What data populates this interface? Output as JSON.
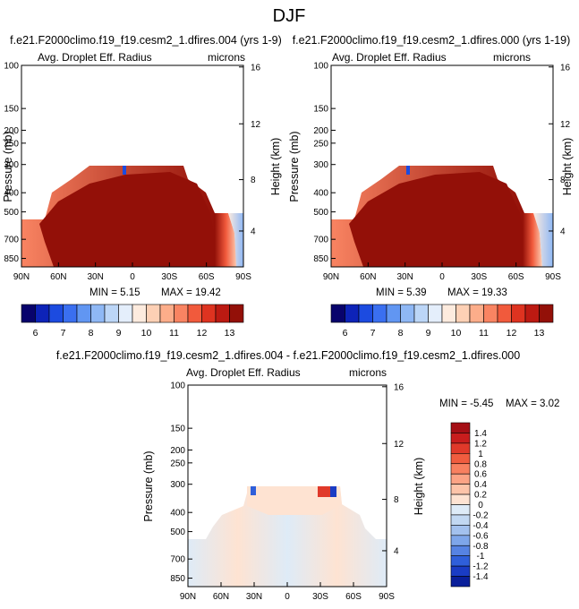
{
  "page_title": "DJF",
  "chart_data": [
    {
      "id": "p1",
      "type": "heatmap",
      "title": "f.e21.F2000climo.f19_f19.cesm2_1.dfires.004 (yrs 1-9)",
      "variable_label": "Avg. Droplet Eff. Radius",
      "units_label": "microns",
      "ylabel": "Pressure (mb)",
      "ylabel_right": "Height (km)",
      "x_ticks": [
        "90N",
        "60N",
        "30N",
        "0",
        "30S",
        "60S",
        "90S"
      ],
      "y_ticks": [
        "100",
        "150",
        "200",
        "250",
        "300",
        "400",
        "500",
        "700",
        "850"
      ],
      "y_ticks_right": [
        "16",
        "12",
        "8",
        "4"
      ],
      "xlim": [
        90,
        -90
      ],
      "ylim": [
        1000,
        100
      ],
      "min_label": "MIN =  5.15",
      "max_label": "MAX = 19.42",
      "colorbar": {
        "orientation": "horizontal",
        "tick_labels": [
          "6",
          "7",
          "8",
          "9",
          "10",
          "11",
          "12",
          "13"
        ],
        "colors": [
          "#08036c",
          "#0d23b8",
          "#1c4be0",
          "#3a6ff0",
          "#6196f2",
          "#8fb8f5",
          "#bcd6f7",
          "#e4eefb",
          "#fdebde",
          "#fdd0b5",
          "#fcad8a",
          "#f98462",
          "#f15a3c",
          "#de3320",
          "#bc1a12",
          "#931008"
        ]
      }
    },
    {
      "id": "p2",
      "type": "heatmap",
      "title": "f.e21.F2000climo.f19_f19.cesm2_1.dfires.000 (yrs 1-19)",
      "variable_label": "Avg. Droplet Eff. Radius",
      "units_label": "microns",
      "ylabel": "Pressure (mb)",
      "ylabel_right": "Height (km)",
      "x_ticks": [
        "90N",
        "60N",
        "30N",
        "0",
        "30S",
        "60S",
        "90S"
      ],
      "y_ticks": [
        "100",
        "150",
        "200",
        "250",
        "300",
        "400",
        "500",
        "700",
        "850"
      ],
      "y_ticks_right": [
        "16",
        "12",
        "8",
        "4"
      ],
      "xlim": [
        90,
        -90
      ],
      "ylim": [
        1000,
        100
      ],
      "min_label": "MIN =  5.39",
      "max_label": "MAX = 19.33",
      "colorbar": {
        "orientation": "horizontal",
        "tick_labels": [
          "6",
          "7",
          "8",
          "9",
          "10",
          "11",
          "12",
          "13"
        ],
        "colors": [
          "#08036c",
          "#0d23b8",
          "#1c4be0",
          "#3a6ff0",
          "#6196f2",
          "#8fb8f5",
          "#bcd6f7",
          "#e4eefb",
          "#fdebde",
          "#fdd0b5",
          "#fcad8a",
          "#f98462",
          "#f15a3c",
          "#de3320",
          "#bc1a12",
          "#931008"
        ]
      }
    },
    {
      "id": "p3",
      "type": "heatmap",
      "title": "f.e21.F2000climo.f19_f19.cesm2_1.dfires.004 - f.e21.F2000climo.f19_f19.cesm2_1.dfires.000",
      "variable_label": "Avg. Droplet Eff. Radius",
      "units_label": "microns",
      "ylabel": "Pressure (mb)",
      "ylabel_right": "Height (km)",
      "x_ticks": [
        "90N",
        "60N",
        "30N",
        "0",
        "30S",
        "60S",
        "90S"
      ],
      "y_ticks": [
        "100",
        "150",
        "200",
        "250",
        "300",
        "400",
        "500",
        "700",
        "850"
      ],
      "y_ticks_right": [
        "16",
        "12",
        "8",
        "4"
      ],
      "xlim": [
        90,
        -90
      ],
      "ylim": [
        1000,
        100
      ],
      "min_label": "MIN = -5.45",
      "max_label": "MAX =  3.02",
      "colorbar": {
        "orientation": "vertical",
        "tick_labels": [
          "1.4",
          "1.2",
          "1",
          "0.8",
          "0.6",
          "0.4",
          "0.2",
          "0",
          "-0.2",
          "-0.4",
          "-0.6",
          "-0.8",
          "-1",
          "-1.2",
          "-1.4"
        ],
        "colors": [
          "#a50f15",
          "#c81d1d",
          "#e0392a",
          "#f05c3f",
          "#f88060",
          "#fca385",
          "#fdc4a9",
          "#fee3d2",
          "#deebf7",
          "#c2d8f2",
          "#a3c1ee",
          "#7ea6ea",
          "#5683e3",
          "#2f5fda",
          "#1a3cc4",
          "#0a1f9a"
        ]
      }
    }
  ]
}
